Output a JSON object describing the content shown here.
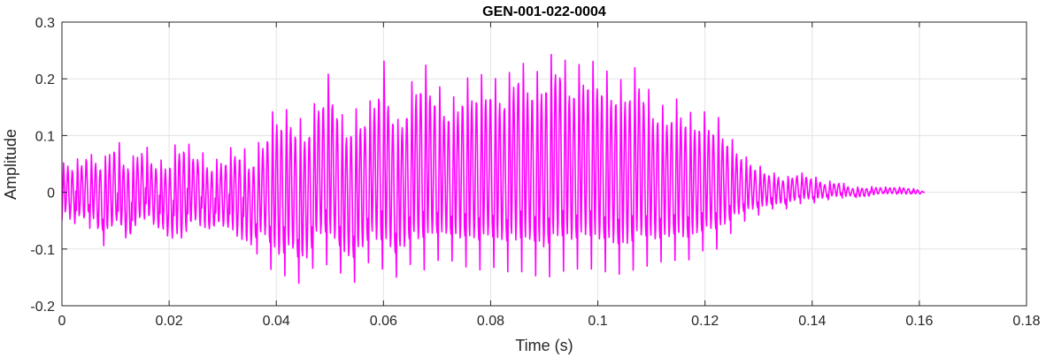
{
  "chart_data": {
    "type": "line",
    "title": "GEN-001-022-0004",
    "xlabel": "Time (s)",
    "ylabel": "Amplitude",
    "xlim": [
      0,
      0.18
    ],
    "ylim": [
      -0.2,
      0.3
    ],
    "x_ticks": [
      0,
      0.02,
      0.04,
      0.06,
      0.08,
      0.1,
      0.12,
      0.14,
      0.16,
      0.18
    ],
    "x_tick_labels": [
      "0",
      "0.02",
      "0.04",
      "0.06",
      "0.08",
      "0.1",
      "0.12",
      "0.14",
      "0.16",
      "0.18"
    ],
    "y_ticks": [
      -0.2,
      -0.1,
      0,
      0.1,
      0.2,
      0.3
    ],
    "y_tick_labels": [
      "-0.2",
      "-0.1",
      "0",
      "0.1",
      "0.2",
      "0.3"
    ],
    "grid": true,
    "line_color": "#ff00ff",
    "series": [
      {
        "x": [
          0,
          0.0025,
          0.005,
          0.0075,
          0.01,
          0.0125,
          0.015,
          0.0175,
          0.02,
          0.0225,
          0.025,
          0.0275,
          0.03,
          0.0325,
          0.035,
          0.0375,
          0.04,
          0.0425,
          0.045,
          0.0475,
          0.05,
          0.0525,
          0.055,
          0.0575,
          0.06,
          0.0625,
          0.065,
          0.0675,
          0.07,
          0.0725,
          0.075,
          0.0775,
          0.08,
          0.0825,
          0.085,
          0.0875,
          0.09,
          0.0925,
          0.095,
          0.0975,
          0.1,
          0.1025,
          0.105,
          0.1075,
          0.11,
          0.1125,
          0.115,
          0.1175,
          0.12,
          0.1225,
          0.125,
          0.1275,
          0.13,
          0.1325,
          0.135,
          0.1375,
          0.14,
          0.1425,
          0.145,
          0.1475,
          0.15,
          0.1525,
          0.155,
          0.1575,
          0.16,
          0.161
        ],
        "max": [
          0.06,
          0.06,
          0.08,
          0.07,
          0.1,
          0.07,
          0.09,
          0.06,
          0.07,
          0.11,
          0.08,
          0.06,
          0.07,
          0.1,
          0.07,
          0.11,
          0.17,
          0.16,
          0.13,
          0.18,
          0.23,
          0.14,
          0.16,
          0.17,
          0.25,
          0.14,
          0.2,
          0.25,
          0.2,
          0.17,
          0.21,
          0.22,
          0.22,
          0.2,
          0.26,
          0.22,
          0.24,
          0.28,
          0.22,
          0.25,
          0.24,
          0.22,
          0.21,
          0.24,
          0.18,
          0.16,
          0.18,
          0.15,
          0.15,
          0.14,
          0.1,
          0.07,
          0.05,
          0.04,
          0.03,
          0.04,
          0.03,
          0.02,
          0.02,
          0.01,
          0.01,
          0.01,
          0.01,
          0.01,
          0.005,
          0.0
        ],
        "min": [
          -0.05,
          -0.07,
          -0.06,
          -0.1,
          -0.08,
          -0.11,
          -0.06,
          -0.08,
          -0.1,
          -0.11,
          -0.07,
          -0.09,
          -0.08,
          -0.1,
          -0.12,
          -0.1,
          -0.16,
          -0.14,
          -0.17,
          -0.12,
          -0.13,
          -0.15,
          -0.16,
          -0.12,
          -0.14,
          -0.15,
          -0.13,
          -0.14,
          -0.12,
          -0.12,
          -0.13,
          -0.14,
          -0.13,
          -0.14,
          -0.14,
          -0.14,
          -0.16,
          -0.14,
          -0.14,
          -0.13,
          -0.14,
          -0.14,
          -0.15,
          -0.13,
          -0.13,
          -0.12,
          -0.12,
          -0.12,
          -0.1,
          -0.1,
          -0.07,
          -0.05,
          -0.04,
          -0.03,
          -0.03,
          -0.02,
          -0.02,
          -0.015,
          -0.01,
          -0.01,
          -0.01,
          -0.005,
          -0.005,
          -0.005,
          -0.005,
          0.0
        ]
      }
    ]
  }
}
